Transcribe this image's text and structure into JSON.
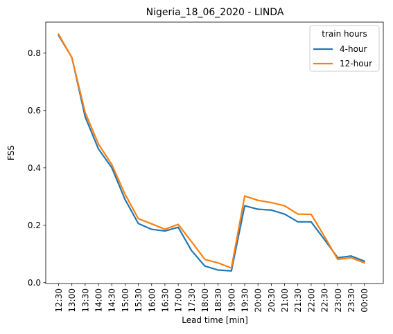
{
  "chart_data": {
    "type": "line",
    "title": "Nigeria_18_06_2020 - LINDA",
    "xlabel": "Lead time [min]",
    "ylabel": "FSS",
    "categories": [
      "12:30",
      "13:00",
      "13:30",
      "14:00",
      "14:30",
      "15:00",
      "15:30",
      "16:00",
      "16:30",
      "17:00",
      "17:30",
      "18:00",
      "18:30",
      "19:00",
      "19:30",
      "20:00",
      "20:30",
      "21:00",
      "21:30",
      "22:00",
      "22:30",
      "23:00",
      "23:30",
      "00:00"
    ],
    "yticks": [
      "0.0",
      "0.2",
      "0.4",
      "0.6",
      "0.8"
    ],
    "ylim": [
      -0.003,
      0.908
    ],
    "grid": false,
    "legend": {
      "title": "train hours",
      "placement": "top-right"
    },
    "series": [
      {
        "name": "4-hour",
        "color": "#1f77b4",
        "values": [
          0.862,
          0.785,
          0.578,
          0.466,
          0.401,
          0.29,
          0.206,
          0.186,
          0.18,
          0.193,
          0.112,
          0.058,
          0.044,
          0.041,
          0.268,
          0.256,
          0.253,
          0.239,
          0.212,
          0.212,
          0.15,
          0.087,
          0.093,
          0.075
        ]
      },
      {
        "name": "12-hour",
        "color": "#ff7f0e",
        "values": [
          0.866,
          0.784,
          0.593,
          0.483,
          0.412,
          0.308,
          0.223,
          0.205,
          0.186,
          0.203,
          0.143,
          0.081,
          0.069,
          0.051,
          0.302,
          0.287,
          0.279,
          0.268,
          0.239,
          0.238,
          0.161,
          0.081,
          0.087,
          0.069
        ]
      }
    ]
  }
}
